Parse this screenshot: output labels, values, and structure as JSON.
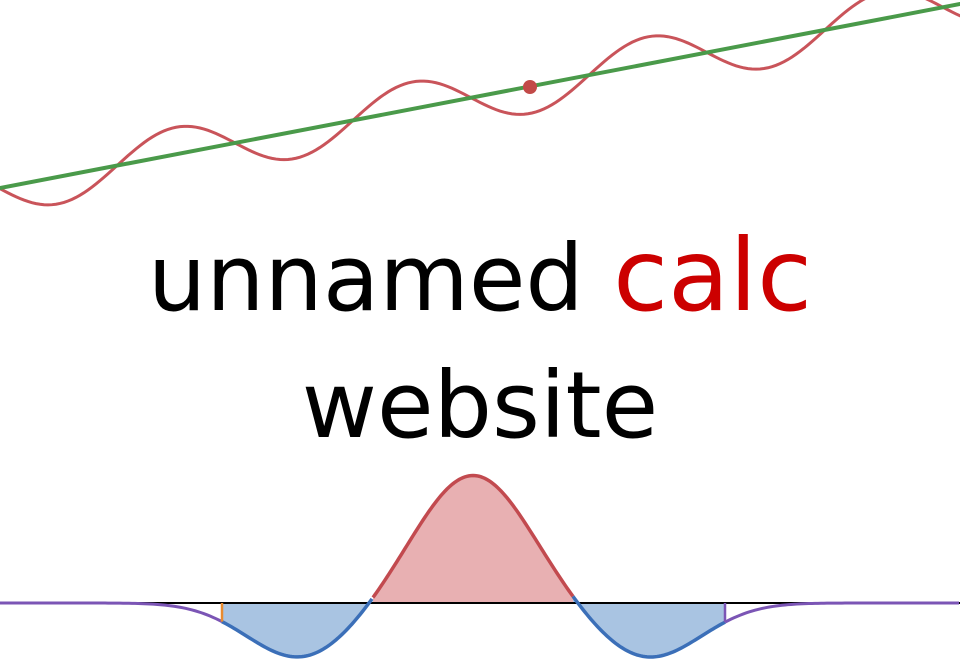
{
  "title": {
    "part1": "unnamed ",
    "accent_word": "calc",
    "line2": "website"
  },
  "colors": {
    "background": "#ffffff",
    "text": "#000000",
    "accent": "#cc0000",
    "wave": "#c9545a",
    "tangent": "#4a9a4a",
    "tangent_point": "#c24a48",
    "axis": "#000000",
    "positive_fill": "#e8b0b2",
    "positive_stroke": "#c24a4f",
    "negative_fill": "#a9c4e2",
    "negative_stroke": "#3b6fb8",
    "tail": "#7b55b5",
    "left_bound": "#e88a2e",
    "right_bound": "#7b55b5"
  },
  "illustrations": {
    "top": "oscillating curve with tangent line and point of tangency",
    "bottom": "curve with shaded signed area between two bounds"
  }
}
